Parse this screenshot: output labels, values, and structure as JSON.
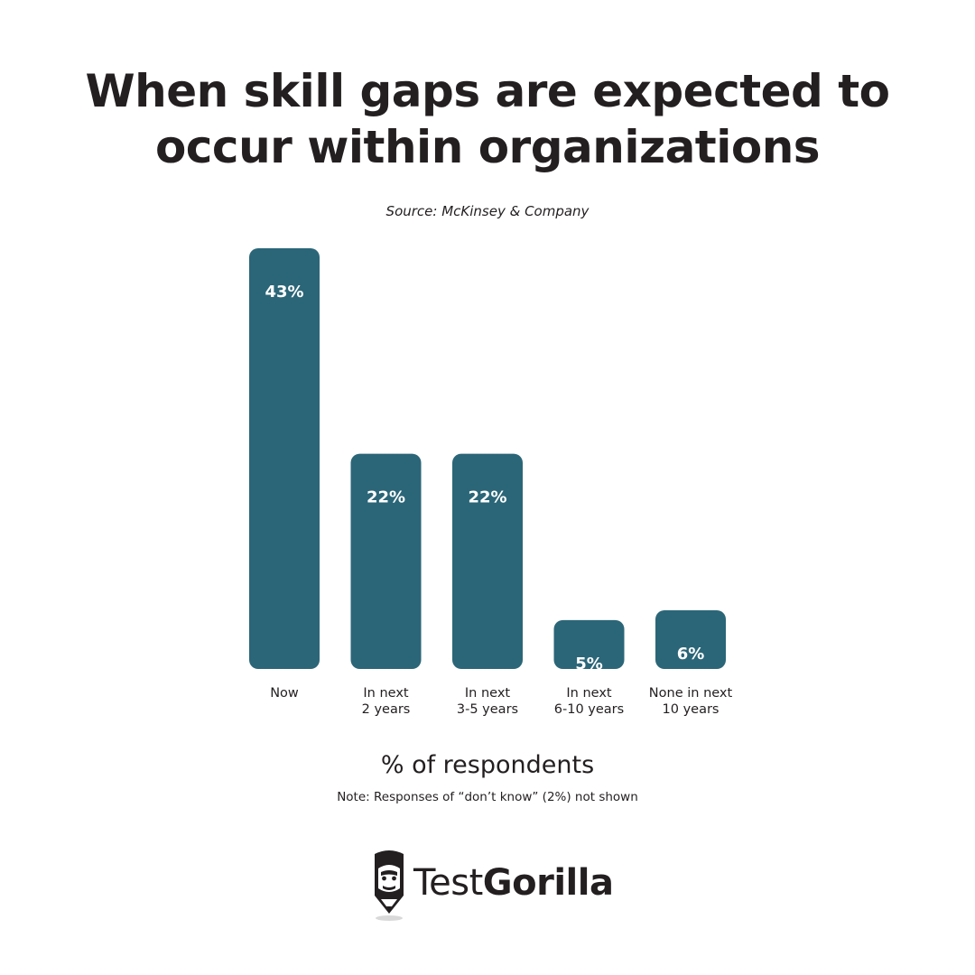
{
  "header": {
    "title_line1": "When skill gaps are expected to",
    "title_line2": "occur within organizations",
    "source": "Source: McKinsey & Company"
  },
  "chart_data": {
    "type": "bar",
    "categories": [
      [
        "Now"
      ],
      [
        "In next",
        "2 years"
      ],
      [
        "In next",
        "3-5 years"
      ],
      [
        "In next",
        "6-10 years"
      ],
      [
        "None in next",
        "10 years"
      ]
    ],
    "values": [
      43,
      22,
      22,
      5,
      6
    ],
    "value_labels": [
      "43%",
      "22%",
      "22%",
      "5%",
      "6%"
    ],
    "xlabel": "% of respondents",
    "ylim": [
      0,
      43
    ],
    "grid": false,
    "bar_color": "#2b6678"
  },
  "footer": {
    "note": "Note: Responses of “don’t know” (2%) not shown"
  },
  "logo": {
    "text_regular": "Test",
    "text_bold": "Gorilla",
    "icon": "gorilla-pencil-icon"
  }
}
